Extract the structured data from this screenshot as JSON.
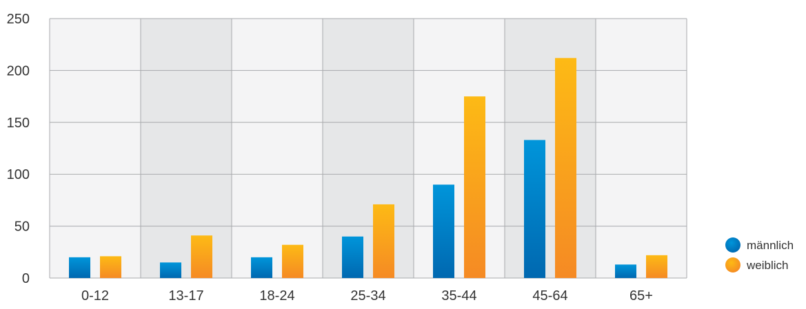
{
  "chart_data": {
    "type": "bar",
    "categories": [
      "0-12",
      "13-17",
      "18-24",
      "25-34",
      "35-44",
      "45-64",
      "65+"
    ],
    "series": [
      {
        "name": "männlich",
        "values": [
          20,
          15,
          20,
          40,
          90,
          133,
          13
        ],
        "color": "#0095DA",
        "color_dark": "#0068B0"
      },
      {
        "name": "weiblich",
        "values": [
          21,
          41,
          32,
          71,
          175,
          212,
          22
        ],
        "color": "#FDBA15",
        "color_dark": "#F58A24"
      }
    ],
    "ylim": [
      0,
      250
    ],
    "yticks": [
      "0",
      "50",
      "100",
      "150",
      "200",
      "250"
    ],
    "grid": true,
    "legend_position": "bottom-right",
    "band_colors": [
      "#f4f4f5",
      "#e6e7e8"
    ],
    "grid_color": "#a7a9ac"
  }
}
